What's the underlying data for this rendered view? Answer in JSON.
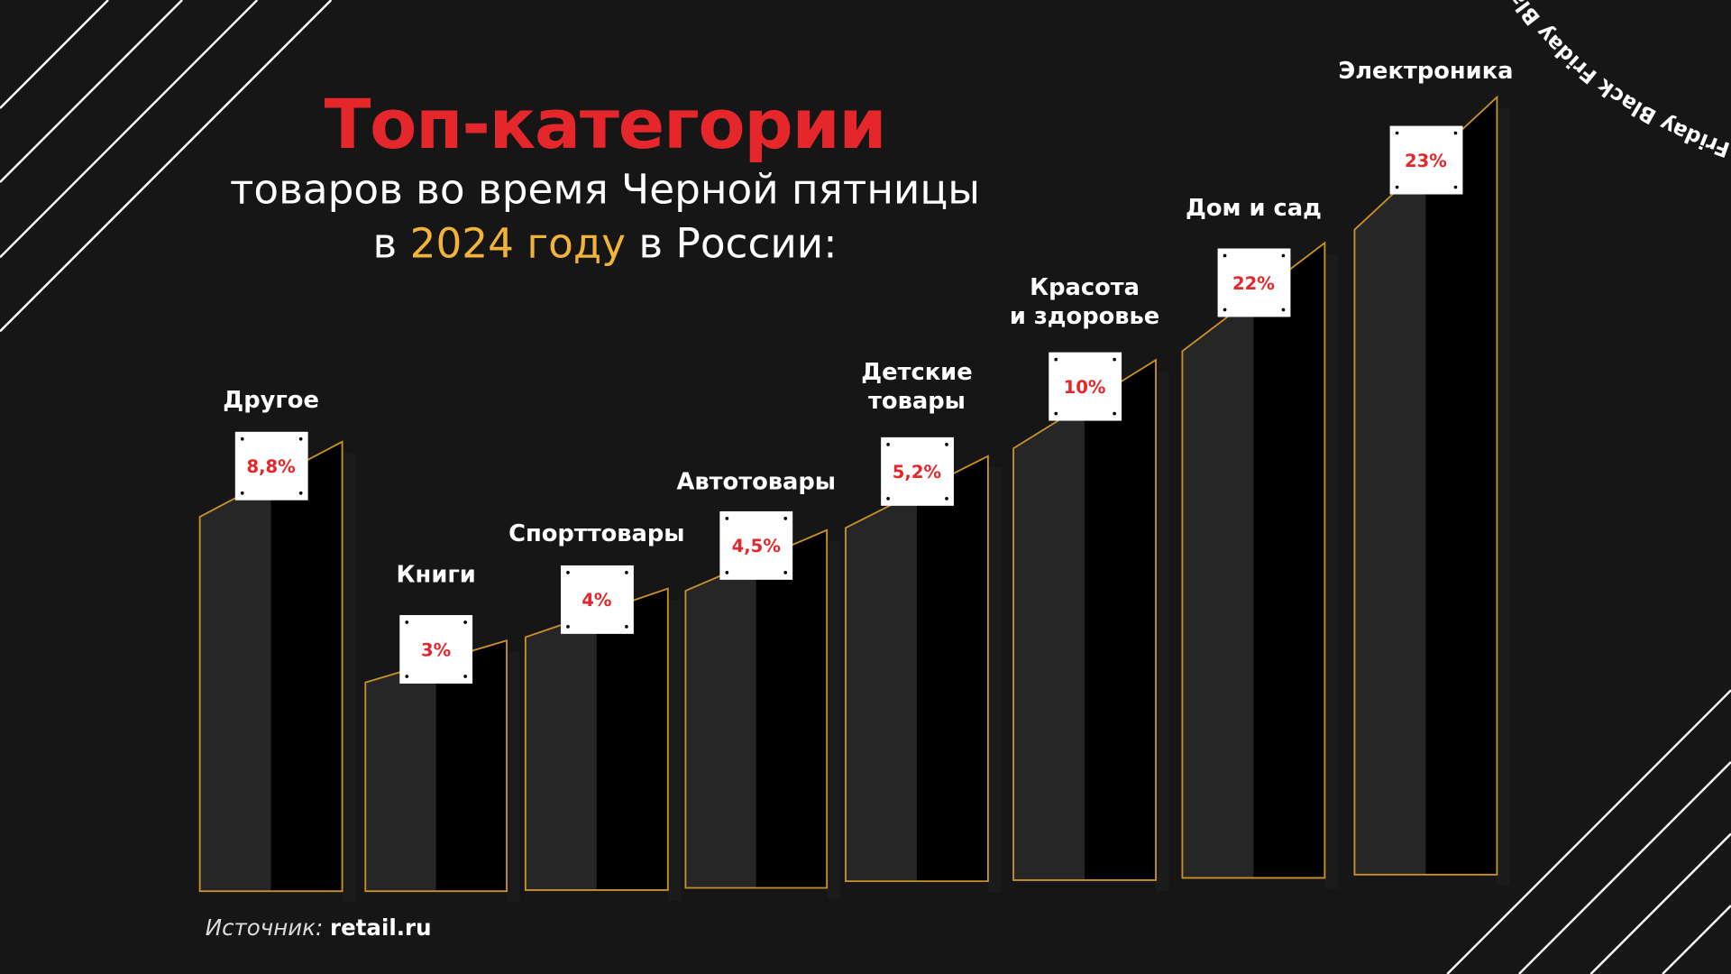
{
  "title": {
    "main": "Топ-категории",
    "line2": "товаров во время Черной пятницы",
    "line3_pre": "в ",
    "line3_highlight": "2024 году",
    "line3_post": " в России:"
  },
  "decor_text": "Black Friday Black Friday Black Friday",
  "source": {
    "label": "Источник: ",
    "value": "retail.ru"
  },
  "colors": {
    "accent_red": "#e5262b",
    "highlight_yellow": "#f2b33a",
    "bar_outline": "#c8912a",
    "background": "#161616"
  },
  "chart_data": {
    "type": "bar",
    "title": "Топ-категории товаров во время Черной пятницы в 2024 году в России:",
    "categories": [
      "Другое",
      "Книги",
      "Спорттовары",
      "Автотовары",
      "Детские товары",
      "Красота и здоровье",
      "Дом и сад",
      "Электроника"
    ],
    "category_lines": [
      [
        "Другое"
      ],
      [
        "Книги"
      ],
      [
        "Спорттовары"
      ],
      [
        "Автотовары"
      ],
      [
        "Детские",
        "товары"
      ],
      [
        "Красота",
        "и здоровье"
      ],
      [
        "Дом и сад"
      ],
      [
        "Электроника"
      ]
    ],
    "values": [
      8.8,
      3,
      4,
      4.5,
      5.2,
      10,
      22,
      23
    ],
    "value_labels": [
      "8,8%",
      "3%",
      "4%",
      "4,5%",
      "5,2%",
      "10%",
      "22%",
      "23%"
    ],
    "unit": "%"
  }
}
